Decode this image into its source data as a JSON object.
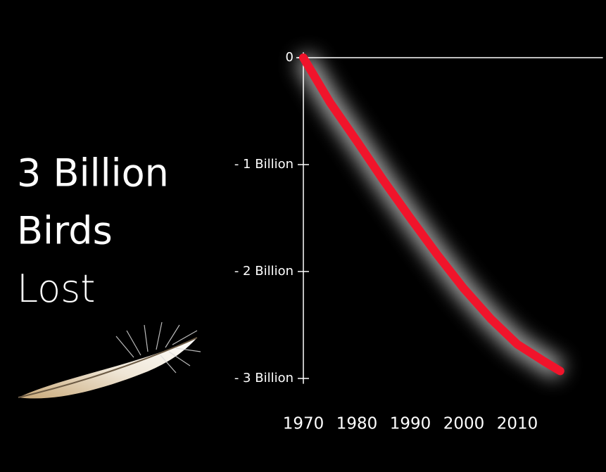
{
  "chart_data": {
    "type": "line",
    "title_lines": [
      "3 Billion",
      "Birds",
      "Lost"
    ],
    "x": [
      1970,
      1975,
      1980,
      1985,
      1990,
      1995,
      2000,
      2005,
      2010,
      2015,
      2018
    ],
    "series": [
      {
        "color": "#f0142b",
        "values": [
          0,
          -0.42,
          -0.78,
          -1.15,
          -1.5,
          -1.84,
          -2.16,
          -2.44,
          -2.68,
          -2.84,
          -2.93
        ]
      }
    ],
    "xlim": [
      1970,
      2026
    ],
    "ylim": [
      -3.05,
      0.05
    ],
    "xticks": [
      1970,
      1980,
      1990,
      2000,
      2010
    ],
    "yticks": [
      0,
      {
        "value": -1,
        "label": "- 1 Billion"
      },
      {
        "value": -2,
        "label": "- 2 Billion"
      },
      {
        "value": -3,
        "label": "- 3 Billion"
      }
    ],
    "glow": true
  }
}
